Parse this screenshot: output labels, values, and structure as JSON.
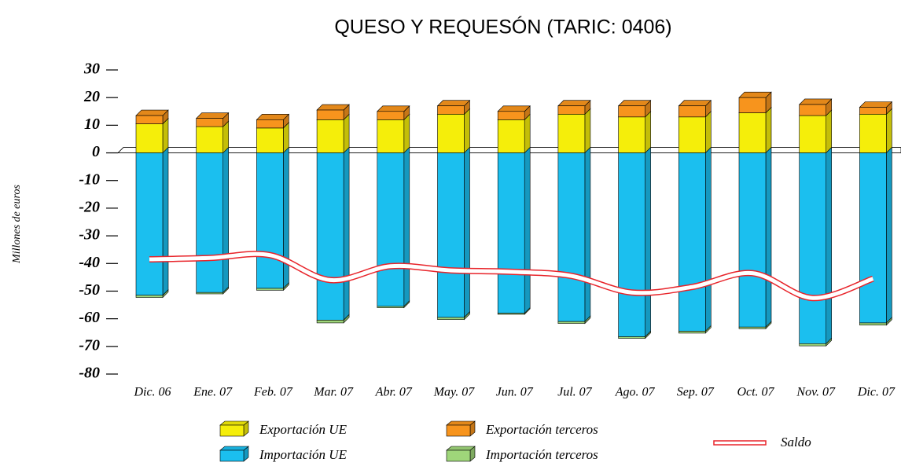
{
  "chart_data": {
    "type": "bar",
    "title": "QUESO Y REQUESÓN (TARIC: 0406)",
    "y_label": "Millones de euros",
    "categories": [
      "Dic. 06",
      "Ene. 07",
      "Feb. 07",
      "Mar. 07",
      "Abr. 07",
      "May. 07",
      "Jun. 07",
      "Jul. 07",
      "Ago. 07",
      "Sep. 07",
      "Oct. 07",
      "Nov. 07",
      "Dic. 07"
    ],
    "series": [
      {
        "name": "Exportación UE",
        "color": "#f5ee0a",
        "values": [
          10.5,
          9.5,
          9,
          12,
          12,
          14,
          12,
          14,
          13,
          13,
          14.5,
          13.5,
          14
        ]
      },
      {
        "name": "Exportación terceros",
        "color": "#f7941d",
        "values": [
          3,
          3,
          3,
          3.5,
          3,
          3,
          3,
          3,
          4,
          4,
          5.5,
          4,
          2.5
        ]
      },
      {
        "name": "Importación UE",
        "color": "#1bbfef",
        "values": [
          -51.5,
          -50.5,
          -49,
          -60.5,
          -55.5,
          -59.5,
          -58,
          -61,
          -66.5,
          -64.5,
          -63,
          -69,
          -61.5
        ]
      },
      {
        "name": "Importación terceros",
        "color": "#9fd67a",
        "values": [
          -0.8,
          -0.5,
          -0.7,
          -1,
          -0.5,
          -0.8,
          -0.4,
          -0.7,
          -0.6,
          -0.7,
          -0.6,
          -0.8,
          -0.8
        ]
      },
      {
        "name": "Saldo",
        "type": "line",
        "color": "#e8242a",
        "values": [
          -38.5,
          -38,
          -37,
          -46,
          -41,
          -42.5,
          -43,
          -44.5,
          -50.5,
          -48.5,
          -43.5,
          -52.5,
          -45.5
        ]
      }
    ],
    "ylim": [
      -80,
      30
    ],
    "yticks": [
      -80,
      -70,
      -60,
      -50,
      -40,
      -30,
      -20,
      -10,
      0,
      10,
      20,
      30
    ]
  }
}
